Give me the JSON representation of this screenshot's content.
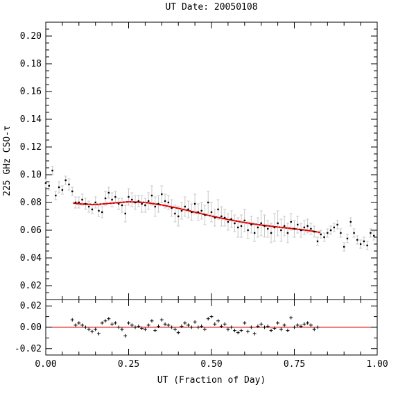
{
  "chart_data": [
    {
      "type": "scatter",
      "title": "UT Date: 20050108",
      "xlabel": "UT (Fraction of Day)",
      "ylabel": "225 GHz CSO-τ",
      "xlim": [
        0.0,
        1.0
      ],
      "ylim": [
        0.01,
        0.21
      ],
      "x_ticks": [
        0.0,
        0.25,
        0.5,
        0.75,
        1.0
      ],
      "x_tick_labels": [
        "0.00",
        "0.25",
        "0.50",
        "0.75",
        "1.00"
      ],
      "y_ticks": [
        0.02,
        0.04,
        0.06,
        0.08,
        0.1,
        0.12,
        0.14,
        0.16,
        0.18,
        0.2
      ],
      "y_tick_labels": [
        "0.02",
        "0.04",
        "0.06",
        "0.08",
        "0.10",
        "0.12",
        "0.14",
        "0.16",
        "0.18",
        "0.20"
      ],
      "colors": {
        "points": "#000000",
        "errorbars": "#c8c8c8",
        "fit": "#e00000"
      },
      "series": [
        {
          "kind": "points_with_errors",
          "x": [
            0.0,
            0.01,
            0.02,
            0.03,
            0.04,
            0.05,
            0.06,
            0.07,
            0.08,
            0.09,
            0.1,
            0.11,
            0.12,
            0.13,
            0.14,
            0.15,
            0.16,
            0.17,
            0.18,
            0.19,
            0.2,
            0.21,
            0.22,
            0.23,
            0.24,
            0.25,
            0.26,
            0.27,
            0.28,
            0.29,
            0.3,
            0.31,
            0.32,
            0.33,
            0.34,
            0.35,
            0.36,
            0.37,
            0.38,
            0.39,
            0.4,
            0.41,
            0.42,
            0.43,
            0.44,
            0.45,
            0.46,
            0.47,
            0.48,
            0.49,
            0.5,
            0.51,
            0.52,
            0.53,
            0.54,
            0.55,
            0.56,
            0.57,
            0.58,
            0.59,
            0.6,
            0.61,
            0.62,
            0.63,
            0.64,
            0.65,
            0.66,
            0.67,
            0.68,
            0.69,
            0.7,
            0.71,
            0.72,
            0.73,
            0.74,
            0.75,
            0.76,
            0.77,
            0.78,
            0.79,
            0.8,
            0.81,
            0.82,
            0.83,
            0.84,
            0.85,
            0.86,
            0.87,
            0.88,
            0.89,
            0.9,
            0.91,
            0.92,
            0.93,
            0.94,
            0.95,
            0.96,
            0.97,
            0.98,
            0.99
          ],
          "y": [
            0.094,
            0.092,
            0.103,
            0.085,
            0.091,
            0.089,
            0.096,
            0.093,
            0.088,
            0.08,
            0.08,
            0.082,
            0.079,
            0.077,
            0.075,
            0.08,
            0.074,
            0.073,
            0.083,
            0.087,
            0.082,
            0.084,
            0.079,
            0.078,
            0.072,
            0.084,
            0.082,
            0.08,
            0.081,
            0.079,
            0.078,
            0.081,
            0.085,
            0.077,
            0.079,
            0.086,
            0.081,
            0.08,
            0.076,
            0.072,
            0.07,
            0.074,
            0.077,
            0.075,
            0.073,
            0.079,
            0.073,
            0.074,
            0.071,
            0.08,
            0.073,
            0.069,
            0.075,
            0.07,
            0.069,
            0.066,
            0.068,
            0.065,
            0.062,
            0.063,
            0.067,
            0.06,
            0.064,
            0.058,
            0.062,
            0.065,
            0.063,
            0.061,
            0.058,
            0.062,
            0.065,
            0.06,
            0.063,
            0.058,
            0.066,
            0.061,
            0.064,
            0.06,
            0.062,
            0.063,
            0.061,
            0.059,
            0.052,
            0.057,
            0.055,
            0.058,
            0.06,
            0.062,
            0.064,
            0.058,
            0.048,
            0.054,
            0.066,
            0.058,
            0.053,
            0.05,
            0.052,
            0.049,
            0.058,
            0.056
          ],
          "yerr": [
            0.003,
            0.003,
            0.003,
            0.003,
            0.004,
            0.003,
            0.003,
            0.004,
            0.003,
            0.004,
            0.004,
            0.004,
            0.004,
            0.004,
            0.003,
            0.004,
            0.004,
            0.004,
            0.005,
            0.004,
            0.005,
            0.004,
            0.004,
            0.005,
            0.006,
            0.006,
            0.005,
            0.005,
            0.004,
            0.006,
            0.005,
            0.006,
            0.007,
            0.007,
            0.006,
            0.006,
            0.005,
            0.005,
            0.006,
            0.006,
            0.007,
            0.006,
            0.007,
            0.006,
            0.006,
            0.007,
            0.006,
            0.006,
            0.007,
            0.008,
            0.007,
            0.006,
            0.007,
            0.007,
            0.006,
            0.006,
            0.006,
            0.006,
            0.007,
            0.008,
            0.008,
            0.006,
            0.006,
            0.006,
            0.007,
            0.009,
            0.008,
            0.006,
            0.007,
            0.01,
            0.009,
            0.008,
            0.007,
            0.007,
            0.006,
            0.006,
            0.006,
            0.005,
            0.005,
            0.005,
            0.004,
            0.004,
            0.003,
            0.003,
            0.003,
            0.003,
            0.003,
            0.003,
            0.003,
            0.003,
            0.003,
            0.003,
            0.003,
            0.003,
            0.003,
            0.003,
            0.003,
            0.003,
            0.003,
            0.003
          ]
        },
        {
          "kind": "fit_line",
          "x": [
            0.085,
            0.1,
            0.15,
            0.2,
            0.25,
            0.3,
            0.35,
            0.4,
            0.45,
            0.5,
            0.55,
            0.6,
            0.65,
            0.7,
            0.75,
            0.8,
            0.825
          ],
          "y": [
            0.0795,
            0.079,
            0.0785,
            0.0795,
            0.0805,
            0.08,
            0.0782,
            0.0758,
            0.073,
            0.0702,
            0.0677,
            0.0655,
            0.0637,
            0.0623,
            0.061,
            0.0595,
            0.0585
          ]
        }
      ]
    },
    {
      "type": "scatter",
      "xlim": [
        0.0,
        1.0
      ],
      "ylim": [
        -0.026,
        0.026
      ],
      "y_ticks": [
        -0.02,
        0.0,
        0.02
      ],
      "y_tick_labels": [
        "-0.02",
        "0.00",
        "0.02"
      ],
      "zero_line_color": "#e00000",
      "residuals": {
        "x": [
          0.08,
          0.09,
          0.1,
          0.11,
          0.12,
          0.13,
          0.14,
          0.15,
          0.16,
          0.17,
          0.18,
          0.19,
          0.2,
          0.21,
          0.22,
          0.23,
          0.24,
          0.25,
          0.26,
          0.27,
          0.28,
          0.29,
          0.3,
          0.31,
          0.32,
          0.33,
          0.34,
          0.35,
          0.36,
          0.37,
          0.38,
          0.39,
          0.4,
          0.41,
          0.42,
          0.43,
          0.44,
          0.45,
          0.46,
          0.47,
          0.48,
          0.49,
          0.5,
          0.51,
          0.52,
          0.53,
          0.54,
          0.55,
          0.56,
          0.57,
          0.58,
          0.59,
          0.6,
          0.61,
          0.62,
          0.63,
          0.64,
          0.65,
          0.66,
          0.67,
          0.68,
          0.69,
          0.7,
          0.71,
          0.72,
          0.73,
          0.74,
          0.75,
          0.76,
          0.77,
          0.78,
          0.79,
          0.8,
          0.81,
          0.82
        ],
        "y": [
          0.007,
          0.002,
          0.004,
          0.002,
          0.0,
          -0.002,
          -0.004,
          -0.002,
          -0.006,
          0.004,
          0.006,
          0.008,
          0.003,
          0.004,
          0.0,
          -0.002,
          -0.008,
          0.004,
          0.002,
          0.0,
          0.001,
          -0.001,
          -0.002,
          0.002,
          0.006,
          -0.003,
          0.001,
          0.007,
          0.003,
          0.002,
          0.0,
          -0.002,
          -0.005,
          0.001,
          0.004,
          0.002,
          0.0,
          0.005,
          0.0,
          0.001,
          -0.002,
          0.008,
          0.01,
          0.003,
          0.006,
          0.001,
          0.003,
          -0.002,
          0.0,
          -0.003,
          -0.005,
          -0.003,
          0.004,
          -0.004,
          0.0,
          -0.006,
          0.001,
          0.003,
          0.0,
          0.001,
          -0.003,
          -0.001,
          0.004,
          -0.002,
          0.002,
          -0.003,
          0.009,
          0.0,
          0.002,
          0.001,
          0.003,
          0.004,
          0.002,
          -0.002,
          0.0
        ]
      }
    }
  ]
}
